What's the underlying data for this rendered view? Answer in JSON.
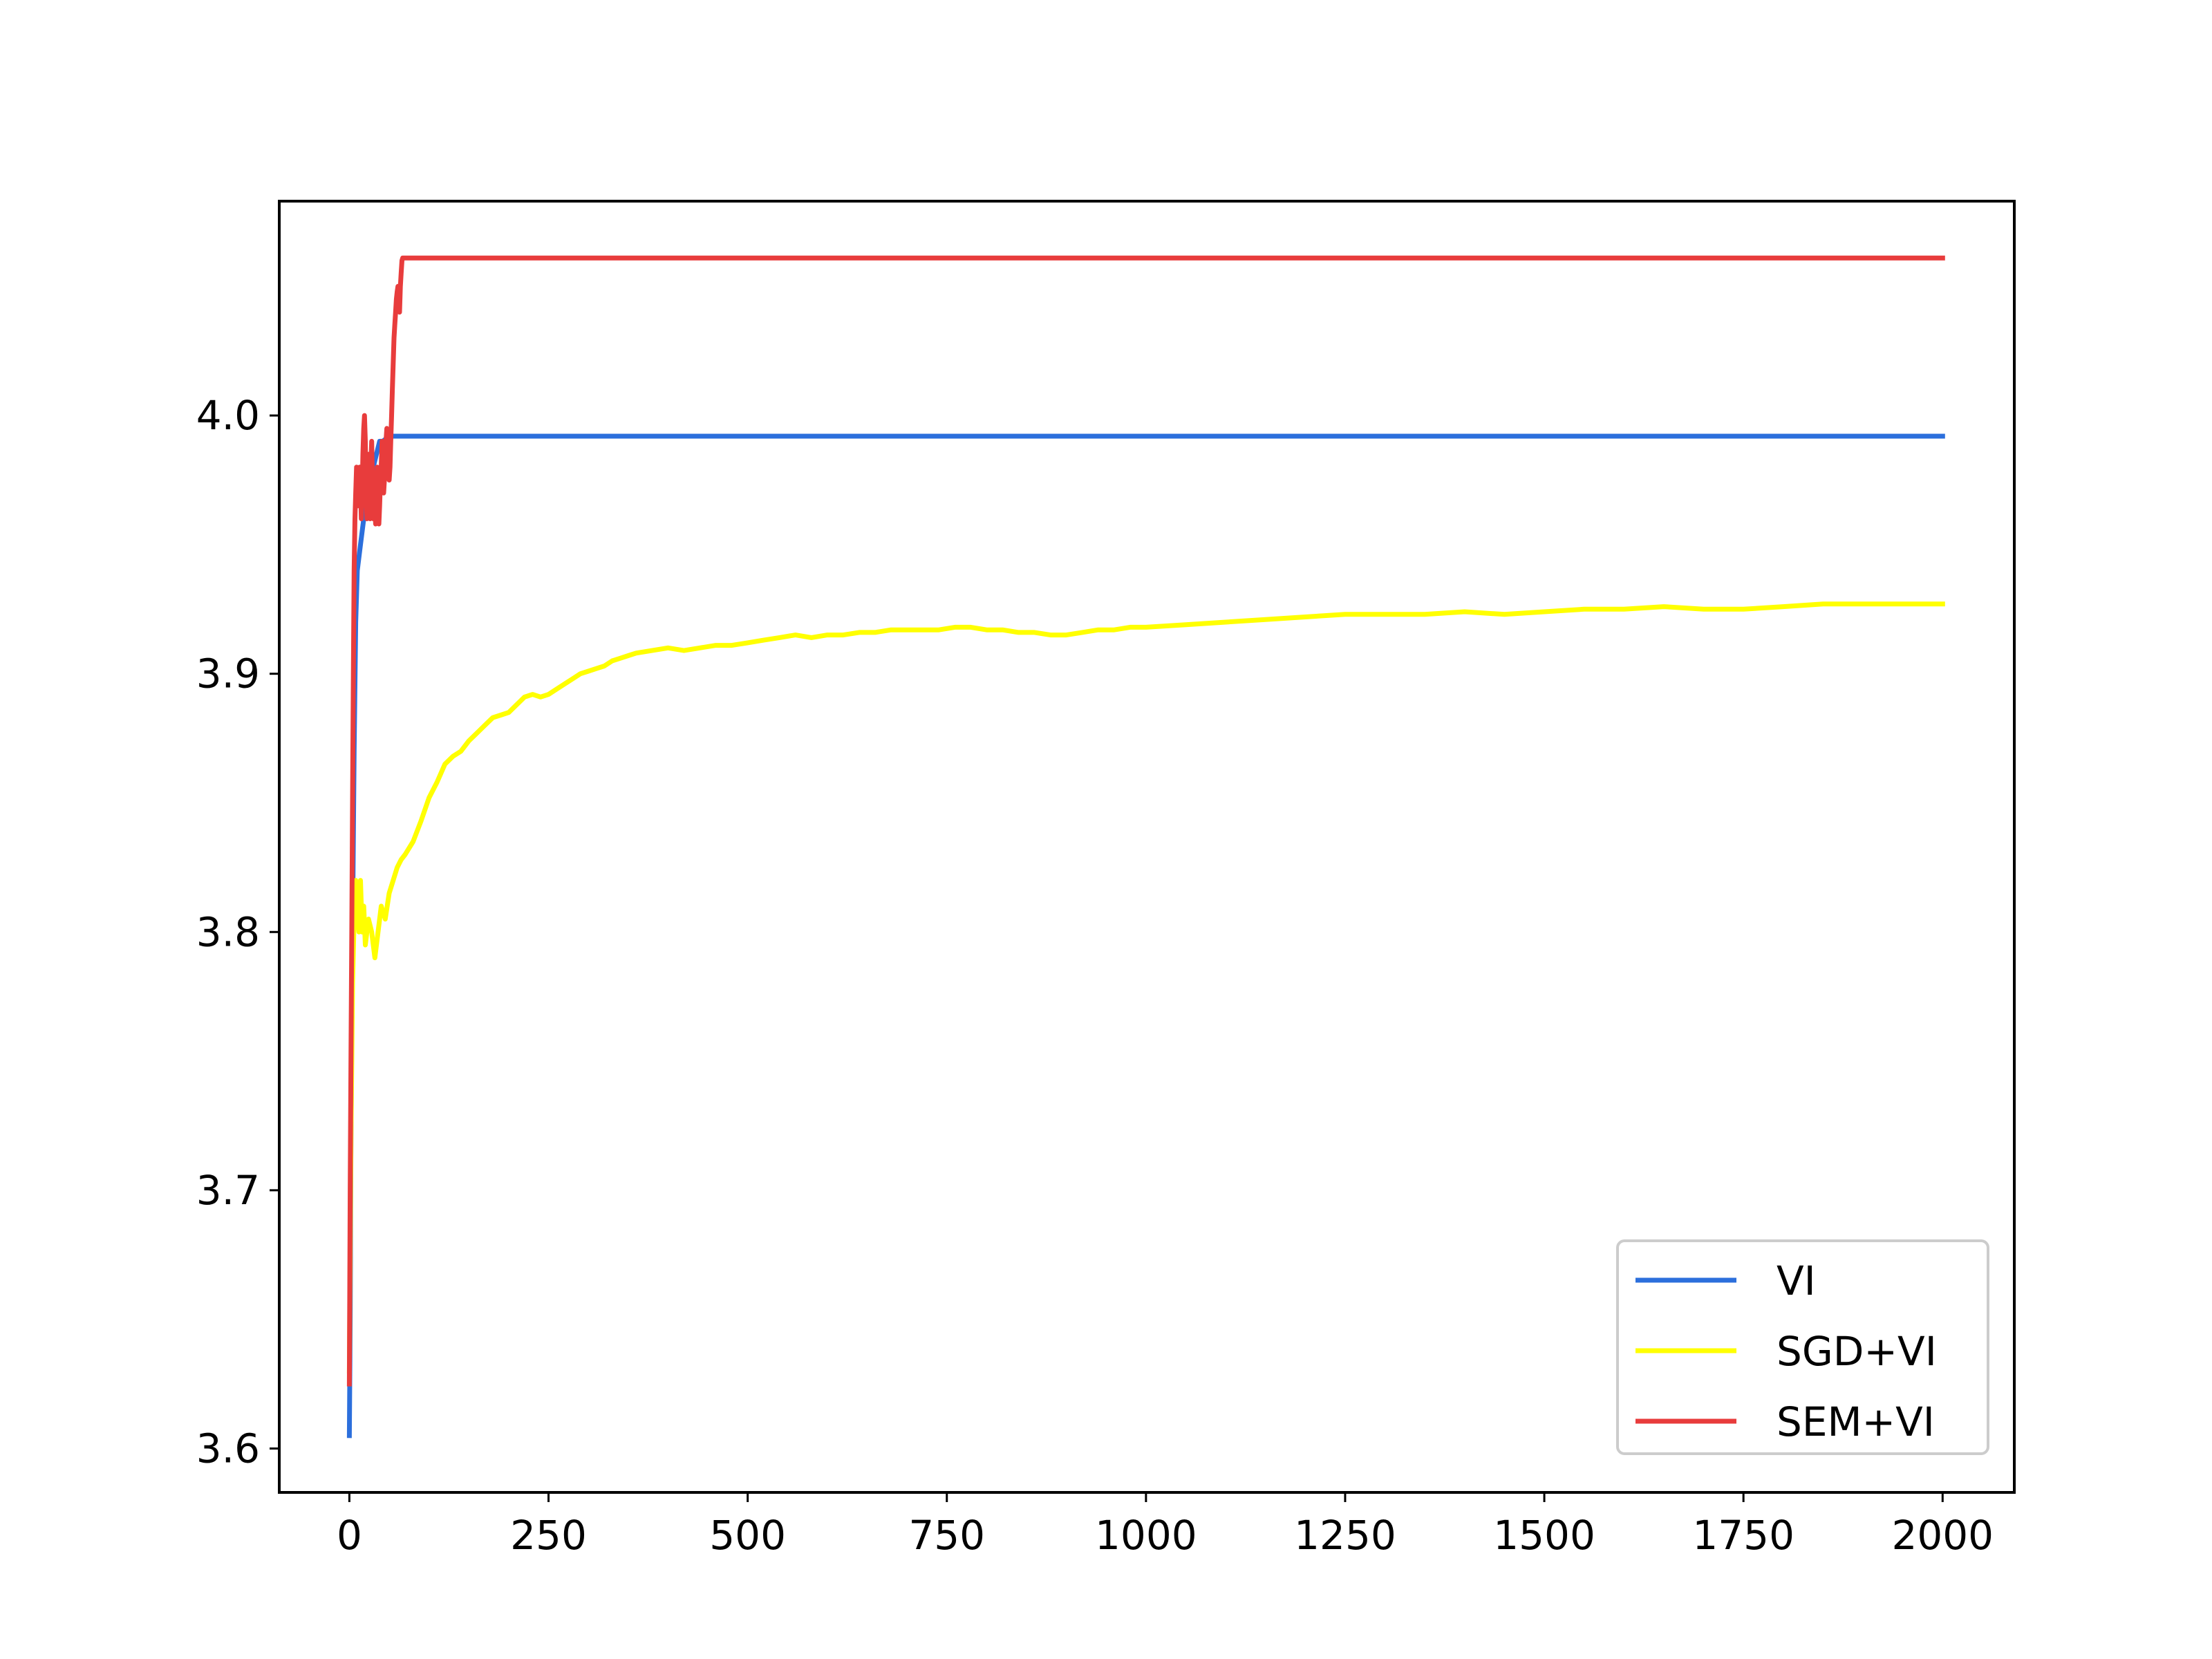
{
  "chart_data": {
    "type": "line",
    "title": "",
    "xlabel": "",
    "ylabel": "",
    "xlim": [
      -88,
      2090
    ],
    "ylim": [
      3.583,
      4.083
    ],
    "x_ticks": [
      0,
      250,
      500,
      750,
      1000,
      1250,
      1500,
      1750,
      2000
    ],
    "x_tick_labels": [
      "0",
      "250",
      "500",
      "750",
      "1000",
      "1250",
      "1500",
      "1750",
      "2000"
    ],
    "y_ticks": [
      3.6,
      3.7,
      3.8,
      3.9,
      4.0
    ],
    "y_tick_labels": [
      "3.6",
      "3.7",
      "3.8",
      "3.9",
      "4.0"
    ],
    "grid": false,
    "legend_position": "lower right",
    "series": [
      {
        "name": "VI",
        "color": "#2c6fdc",
        "points": [
          [
            0,
            3.605
          ],
          [
            1,
            3.65
          ],
          [
            2,
            3.72
          ],
          [
            4,
            3.8
          ],
          [
            6,
            3.87
          ],
          [
            8,
            3.92
          ],
          [
            10,
            3.94
          ],
          [
            14,
            3.95
          ],
          [
            18,
            3.96
          ],
          [
            22,
            3.965
          ],
          [
            26,
            3.97
          ],
          [
            30,
            3.98
          ],
          [
            34,
            3.985
          ],
          [
            38,
            3.99
          ],
          [
            42,
            3.99
          ],
          [
            50,
            3.992
          ],
          [
            100,
            3.992
          ],
          [
            500,
            3.992
          ],
          [
            1000,
            3.992
          ],
          [
            1500,
            3.992
          ],
          [
            2000,
            3.992
          ]
        ]
      },
      {
        "name": "SGD+VI",
        "color": "#ffff00",
        "points": [
          [
            0,
            3.63
          ],
          [
            2,
            3.72
          ],
          [
            4,
            3.78
          ],
          [
            6,
            3.805
          ],
          [
            8,
            3.82
          ],
          [
            10,
            3.81
          ],
          [
            12,
            3.8
          ],
          [
            14,
            3.82
          ],
          [
            16,
            3.8
          ],
          [
            18,
            3.81
          ],
          [
            20,
            3.795
          ],
          [
            24,
            3.805
          ],
          [
            28,
            3.8
          ],
          [
            32,
            3.79
          ],
          [
            36,
            3.8
          ],
          [
            40,
            3.81
          ],
          [
            45,
            3.805
          ],
          [
            50,
            3.815
          ],
          [
            55,
            3.82
          ],
          [
            60,
            3.825
          ],
          [
            65,
            3.828
          ],
          [
            70,
            3.83
          ],
          [
            80,
            3.835
          ],
          [
            90,
            3.843
          ],
          [
            100,
            3.852
          ],
          [
            110,
            3.858
          ],
          [
            120,
            3.865
          ],
          [
            130,
            3.868
          ],
          [
            140,
            3.87
          ],
          [
            150,
            3.874
          ],
          [
            160,
            3.877
          ],
          [
            170,
            3.88
          ],
          [
            180,
            3.883
          ],
          [
            190,
            3.884
          ],
          [
            200,
            3.885
          ],
          [
            210,
            3.888
          ],
          [
            220,
            3.891
          ],
          [
            230,
            3.892
          ],
          [
            240,
            3.891
          ],
          [
            250,
            3.892
          ],
          [
            260,
            3.894
          ],
          [
            270,
            3.896
          ],
          [
            280,
            3.898
          ],
          [
            290,
            3.9
          ],
          [
            300,
            3.901
          ],
          [
            310,
            3.902
          ],
          [
            320,
            3.903
          ],
          [
            330,
            3.905
          ],
          [
            340,
            3.906
          ],
          [
            350,
            3.907
          ],
          [
            360,
            3.908
          ],
          [
            380,
            3.909
          ],
          [
            400,
            3.91
          ],
          [
            420,
            3.909
          ],
          [
            440,
            3.91
          ],
          [
            460,
            3.911
          ],
          [
            480,
            3.911
          ],
          [
            500,
            3.912
          ],
          [
            520,
            3.913
          ],
          [
            540,
            3.914
          ],
          [
            560,
            3.915
          ],
          [
            580,
            3.914
          ],
          [
            600,
            3.915
          ],
          [
            620,
            3.915
          ],
          [
            640,
            3.916
          ],
          [
            660,
            3.916
          ],
          [
            680,
            3.917
          ],
          [
            700,
            3.917
          ],
          [
            720,
            3.917
          ],
          [
            740,
            3.917
          ],
          [
            760,
            3.918
          ],
          [
            780,
            3.918
          ],
          [
            800,
            3.917
          ],
          [
            820,
            3.917
          ],
          [
            840,
            3.916
          ],
          [
            860,
            3.916
          ],
          [
            880,
            3.915
          ],
          [
            900,
            3.915
          ],
          [
            920,
            3.916
          ],
          [
            940,
            3.917
          ],
          [
            960,
            3.917
          ],
          [
            980,
            3.918
          ],
          [
            1000,
            3.918
          ],
          [
            1050,
            3.919
          ],
          [
            1100,
            3.92
          ],
          [
            1150,
            3.921
          ],
          [
            1200,
            3.922
          ],
          [
            1250,
            3.923
          ],
          [
            1300,
            3.923
          ],
          [
            1350,
            3.923
          ],
          [
            1400,
            3.924
          ],
          [
            1450,
            3.923
          ],
          [
            1500,
            3.924
          ],
          [
            1550,
            3.925
          ],
          [
            1600,
            3.925
          ],
          [
            1650,
            3.926
          ],
          [
            1700,
            3.925
          ],
          [
            1750,
            3.925
          ],
          [
            1800,
            3.926
          ],
          [
            1850,
            3.927
          ],
          [
            1900,
            3.927
          ],
          [
            1950,
            3.927
          ],
          [
            2000,
            3.927
          ]
        ]
      },
      {
        "name": "SEM+VI",
        "color": "#e83c3c",
        "points": [
          [
            0,
            3.625
          ],
          [
            1,
            3.7
          ],
          [
            2,
            3.75
          ],
          [
            3,
            3.8
          ],
          [
            4,
            3.85
          ],
          [
            5,
            3.9
          ],
          [
            6,
            3.94
          ],
          [
            7,
            3.96
          ],
          [
            8,
            3.97
          ],
          [
            9,
            3.98
          ],
          [
            10,
            3.975
          ],
          [
            11,
            3.965
          ],
          [
            12,
            3.97
          ],
          [
            13,
            3.98
          ],
          [
            14,
            3.975
          ],
          [
            15,
            3.96
          ],
          [
            16,
            3.97
          ],
          [
            17,
            3.985
          ],
          [
            18,
            3.995
          ],
          [
            19,
            4.0
          ],
          [
            20,
            3.99
          ],
          [
            21,
            3.97
          ],
          [
            22,
            3.96
          ],
          [
            23,
            3.975
          ],
          [
            24,
            3.985
          ],
          [
            25,
            3.97
          ],
          [
            26,
            3.96
          ],
          [
            27,
            3.98
          ],
          [
            28,
            3.99
          ],
          [
            29,
            3.975
          ],
          [
            30,
            3.96
          ],
          [
            31,
            3.97
          ],
          [
            32,
            3.965
          ],
          [
            33,
            3.958
          ],
          [
            34,
            3.97
          ],
          [
            35,
            3.98
          ],
          [
            36,
            3.97
          ],
          [
            37,
            3.958
          ],
          [
            38,
            3.965
          ],
          [
            39,
            3.975
          ],
          [
            40,
            3.98
          ],
          [
            41,
            3.99
          ],
          [
            42,
            3.985
          ],
          [
            43,
            3.97
          ],
          [
            44,
            3.975
          ],
          [
            45,
            3.985
          ],
          [
            46,
            3.99
          ],
          [
            47,
            3.995
          ],
          [
            48,
            3.99
          ],
          [
            49,
            3.98
          ],
          [
            50,
            3.975
          ],
          [
            51,
            3.98
          ],
          [
            52,
            3.99
          ],
          [
            53,
            4.0
          ],
          [
            54,
            4.01
          ],
          [
            55,
            4.02
          ],
          [
            56,
            4.03
          ],
          [
            57,
            4.035
          ],
          [
            58,
            4.04
          ],
          [
            59,
            4.045
          ],
          [
            60,
            4.048
          ],
          [
            61,
            4.05
          ],
          [
            62,
            4.045
          ],
          [
            63,
            4.04
          ],
          [
            64,
            4.05
          ],
          [
            65,
            4.055
          ],
          [
            66,
            4.06
          ],
          [
            67,
            4.061
          ],
          [
            70,
            4.061
          ],
          [
            100,
            4.061
          ],
          [
            500,
            4.061
          ],
          [
            1000,
            4.061
          ],
          [
            1500,
            4.061
          ],
          [
            2000,
            4.061
          ]
        ]
      }
    ]
  }
}
